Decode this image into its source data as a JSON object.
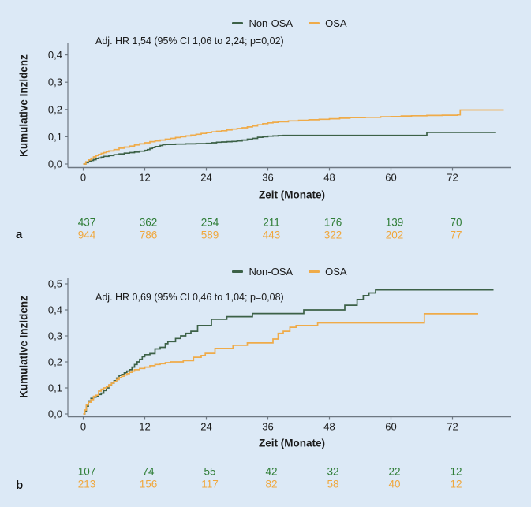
{
  "figure": {
    "background": "#dce9f6",
    "axis_color": "#6e7882",
    "text_color": "#1b1b1b"
  },
  "chart_data": [
    {
      "type": "line",
      "subtype": "cumulative-incidence-step",
      "panel": "a",
      "annotation": "Adj. HR 1,54 (95% CI 1,06 to 2,24; p=0,02)",
      "xlabel": "Zeit (Monate)",
      "ylabel": "Kumulative Inzidenz",
      "xlim": [
        0,
        83
      ],
      "ylim": [
        0,
        0.45
      ],
      "xticks": [
        0,
        12,
        24,
        36,
        48,
        60,
        72
      ],
      "xtick_labels": [
        "0",
        "12",
        "24",
        "36",
        "48",
        "60",
        "72"
      ],
      "ytick_labels": [
        "0,0",
        "0,1",
        "0,2",
        "0,3",
        "0,4"
      ],
      "legend_position": "top-center",
      "grid": false,
      "series": [
        {
          "name": "Non-OSA",
          "color": "#3c6147",
          "points": [
            [
              0,
              0
            ],
            [
              0.5,
              0.005
            ],
            [
              1,
              0.01
            ],
            [
              1.5,
              0.013
            ],
            [
              2,
              0.016
            ],
            [
              2.5,
              0.02
            ],
            [
              3,
              0.022
            ],
            [
              3.5,
              0.025
            ],
            [
              4,
              0.028
            ],
            [
              5,
              0.031
            ],
            [
              6,
              0.034
            ],
            [
              7,
              0.037
            ],
            [
              8,
              0.04
            ],
            [
              9,
              0.042
            ],
            [
              10,
              0.044
            ],
            [
              11,
              0.047
            ],
            [
              12,
              0.05
            ],
            [
              12.5,
              0.053
            ],
            [
              13,
              0.057
            ],
            [
              13.5,
              0.06
            ],
            [
              14,
              0.064
            ],
            [
              15,
              0.068
            ],
            [
              15.5,
              0.071
            ],
            [
              16,
              0.072
            ],
            [
              18,
              0.073
            ],
            [
              20,
              0.074
            ],
            [
              22,
              0.075
            ],
            [
              24,
              0.076
            ],
            [
              25,
              0.078
            ],
            [
              26,
              0.08
            ],
            [
              27,
              0.081
            ],
            [
              28,
              0.082
            ],
            [
              29,
              0.083
            ],
            [
              30,
              0.085
            ],
            [
              31,
              0.088
            ],
            [
              32,
              0.091
            ],
            [
              33,
              0.094
            ],
            [
              34,
              0.098
            ],
            [
              35,
              0.1
            ],
            [
              36,
              0.102
            ],
            [
              37,
              0.103
            ],
            [
              38,
              0.104
            ],
            [
              39,
              0.105
            ],
            [
              67,
              0.116
            ],
            [
              80.5,
              0.116
            ]
          ]
        },
        {
          "name": "OSA",
          "color": "#efab49",
          "points": [
            [
              0,
              0
            ],
            [
              0.5,
              0.008
            ],
            [
              1,
              0.015
            ],
            [
              1.5,
              0.021
            ],
            [
              2,
              0.026
            ],
            [
              2.5,
              0.031
            ],
            [
              3,
              0.035
            ],
            [
              3.5,
              0.039
            ],
            [
              4,
              0.042
            ],
            [
              4.5,
              0.045
            ],
            [
              5,
              0.048
            ],
            [
              6,
              0.053
            ],
            [
              7,
              0.058
            ],
            [
              8,
              0.062
            ],
            [
              9,
              0.066
            ],
            [
              10,
              0.07
            ],
            [
              11,
              0.074
            ],
            [
              12,
              0.078
            ],
            [
              13,
              0.082
            ],
            [
              14,
              0.085
            ],
            [
              15,
              0.088
            ],
            [
              16,
              0.091
            ],
            [
              17,
              0.094
            ],
            [
              18,
              0.097
            ],
            [
              19,
              0.1
            ],
            [
              20,
              0.103
            ],
            [
              21,
              0.106
            ],
            [
              22,
              0.109
            ],
            [
              23,
              0.112
            ],
            [
              24,
              0.115
            ],
            [
              25,
              0.118
            ],
            [
              26,
              0.12
            ],
            [
              27,
              0.122
            ],
            [
              28,
              0.125
            ],
            [
              29,
              0.128
            ],
            [
              30,
              0.13
            ],
            [
              31,
              0.133
            ],
            [
              32,
              0.136
            ],
            [
              33,
              0.14
            ],
            [
              34,
              0.144
            ],
            [
              35,
              0.148
            ],
            [
              36,
              0.151
            ],
            [
              37,
              0.153
            ],
            [
              38,
              0.155
            ],
            [
              40,
              0.158
            ],
            [
              42,
              0.16
            ],
            [
              44,
              0.162
            ],
            [
              46,
              0.164
            ],
            [
              48,
              0.166
            ],
            [
              50,
              0.168
            ],
            [
              52,
              0.17
            ],
            [
              55,
              0.171
            ],
            [
              58,
              0.173
            ],
            [
              60,
              0.174
            ],
            [
              62,
              0.176
            ],
            [
              64,
              0.177
            ],
            [
              67,
              0.178
            ],
            [
              70,
              0.179
            ],
            [
              73,
              0.18
            ],
            [
              73.5,
              0.198
            ],
            [
              82,
              0.198
            ]
          ]
        }
      ],
      "numbers_at_risk": {
        "times": [
          0,
          12,
          24,
          36,
          48,
          60,
          72
        ],
        "rows": [
          {
            "name": "Non-OSA",
            "color": "#2e7d36",
            "values": [
              "437",
              "362",
              "254",
              "211",
              "176",
              "139",
              "70"
            ]
          },
          {
            "name": "OSA",
            "color": "#f0a73c",
            "values": [
              "944",
              "786",
              "589",
              "443",
              "322",
              "202",
              "77"
            ]
          }
        ]
      }
    },
    {
      "type": "line",
      "subtype": "cumulative-incidence-step",
      "panel": "b",
      "annotation": "Adj. HR 0,69 (95% CI 0,46 to 1,04; p=0,08)",
      "xlabel": "Zeit (Monate)",
      "ylabel": "Kumulative Inzidenz",
      "xlim": [
        0,
        83
      ],
      "ylim": [
        0,
        0.53
      ],
      "xticks": [
        0,
        12,
        24,
        36,
        48,
        60,
        72
      ],
      "xtick_labels": [
        "0",
        "12",
        "24",
        "36",
        "48",
        "60",
        "72"
      ],
      "ytick_labels": [
        "0,0",
        "0,1",
        "0,2",
        "0,3",
        "0,4",
        "0,5"
      ],
      "legend_position": "top-center",
      "grid": false,
      "series": [
        {
          "name": "Non-OSA",
          "color": "#3c6147",
          "points": [
            [
              0,
              0
            ],
            [
              0.3,
              0.01
            ],
            [
              0.6,
              0.03
            ],
            [
              1,
              0.05
            ],
            [
              1.5,
              0.06
            ],
            [
              2,
              0.065
            ],
            [
              2.5,
              0.068
            ],
            [
              3,
              0.075
            ],
            [
              3.5,
              0.08
            ],
            [
              4,
              0.09
            ],
            [
              4.5,
              0.1
            ],
            [
              5,
              0.11
            ],
            [
              5.5,
              0.118
            ],
            [
              6,
              0.128
            ],
            [
              6.5,
              0.138
            ],
            [
              7,
              0.148
            ],
            [
              7.5,
              0.152
            ],
            [
              8,
              0.158
            ],
            [
              8.5,
              0.165
            ],
            [
              9,
              0.17
            ],
            [
              9.5,
              0.18
            ],
            [
              10,
              0.19
            ],
            [
              10.5,
              0.2
            ],
            [
              11,
              0.21
            ],
            [
              11.5,
              0.22
            ],
            [
              12,
              0.228
            ],
            [
              13,
              0.232
            ],
            [
              14,
              0.25
            ],
            [
              15,
              0.256
            ],
            [
              16,
              0.27
            ],
            [
              16.5,
              0.278
            ],
            [
              18,
              0.29
            ],
            [
              19,
              0.3
            ],
            [
              20,
              0.31
            ],
            [
              21,
              0.318
            ],
            [
              22.3,
              0.34
            ],
            [
              25,
              0.364
            ],
            [
              28,
              0.374
            ],
            [
              33,
              0.386
            ],
            [
              43,
              0.4
            ],
            [
              51,
              0.418
            ],
            [
              53.4,
              0.44
            ],
            [
              54.6,
              0.455
            ],
            [
              55.7,
              0.465
            ],
            [
              57,
              0.477
            ],
            [
              80,
              0.477
            ]
          ]
        },
        {
          "name": "OSA",
          "color": "#efab49",
          "points": [
            [
              0,
              0
            ],
            [
              0.3,
              0.015
            ],
            [
              0.6,
              0.035
            ],
            [
              1,
              0.045
            ],
            [
              1.5,
              0.055
            ],
            [
              2,
              0.068
            ],
            [
              2.5,
              0.072
            ],
            [
              3,
              0.088
            ],
            [
              3.5,
              0.095
            ],
            [
              4,
              0.1
            ],
            [
              4.5,
              0.105
            ],
            [
              5,
              0.112
            ],
            [
              5.5,
              0.118
            ],
            [
              6,
              0.125
            ],
            [
              6.5,
              0.132
            ],
            [
              7,
              0.14
            ],
            [
              7.5,
              0.145
            ],
            [
              8,
              0.15
            ],
            [
              8.5,
              0.155
            ],
            [
              9,
              0.16
            ],
            [
              9.5,
              0.165
            ],
            [
              10,
              0.17
            ],
            [
              11,
              0.175
            ],
            [
              12,
              0.18
            ],
            [
              13,
              0.185
            ],
            [
              14,
              0.19
            ],
            [
              15,
              0.193
            ],
            [
              16,
              0.197
            ],
            [
              17,
              0.2
            ],
            [
              19.5,
              0.205
            ],
            [
              21.5,
              0.218
            ],
            [
              23,
              0.225
            ],
            [
              23.8,
              0.233
            ],
            [
              25.7,
              0.252
            ],
            [
              29.2,
              0.264
            ],
            [
              32,
              0.273
            ],
            [
              37,
              0.288
            ],
            [
              38,
              0.31
            ],
            [
              39,
              0.318
            ],
            [
              40.3,
              0.333
            ],
            [
              41.5,
              0.34
            ],
            [
              45.7,
              0.35
            ],
            [
              66.5,
              0.385
            ],
            [
              77,
              0.385
            ]
          ]
        }
      ],
      "numbers_at_risk": {
        "times": [
          0,
          12,
          24,
          36,
          48,
          60,
          72
        ],
        "rows": [
          {
            "name": "Non-OSA",
            "color": "#2e7d36",
            "values": [
              "107",
              "74",
              "55",
              "42",
              "32",
              "22",
              "12"
            ]
          },
          {
            "name": "OSA",
            "color": "#f0a73c",
            "values": [
              "213",
              "156",
              "117",
              "82",
              "58",
              "40",
              "12"
            ]
          }
        ]
      }
    }
  ]
}
